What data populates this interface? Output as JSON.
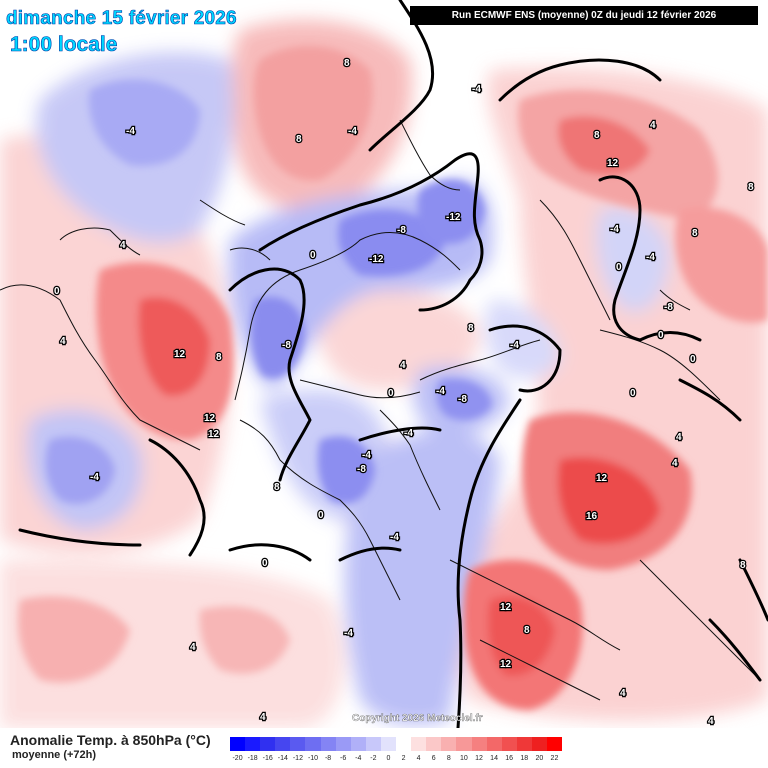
{
  "header": {
    "date": "dimanche 15 février 2026",
    "time": "1:00 locale",
    "run": "Run ECMWF ENS (moyenne) 0Z du jeudi 12 février 2026"
  },
  "footer": {
    "variable": "Anomalie Temp. à 850hPa (°C)",
    "subtitle": "moyenne  (+72h)",
    "copyright": "Copyright 2026 Meteociel.fr"
  },
  "legend": {
    "values": [
      "-20",
      "-18",
      "-16",
      "-14",
      "-12",
      "-10",
      "-8",
      "-6",
      "-4",
      "-2",
      "0",
      "2",
      "4",
      "6",
      "8",
      "10",
      "12",
      "14",
      "16",
      "18",
      "20",
      "22"
    ],
    "colors": [
      "#0000ff",
      "#1a1aff",
      "#3030f0",
      "#4646f0",
      "#5a5af0",
      "#6e6ef2",
      "#8484f4",
      "#9a9af6",
      "#b0b0f8",
      "#c8c8fa",
      "#e2e2fc",
      "#ffffff",
      "#fde0e0",
      "#fbc8c8",
      "#f9b0b0",
      "#f79898",
      "#f58080",
      "#f36868",
      "#f15050",
      "#ef3838",
      "#ee2020",
      "#ff0000"
    ]
  },
  "contour_labels": [
    "-4",
    "8",
    "8",
    "-4",
    "8",
    "-4",
    "8",
    "4",
    "12",
    "8",
    "-4",
    "0",
    "-12",
    "-8",
    "-12",
    "-8",
    "4",
    "4",
    "0",
    "0",
    "8",
    "4",
    "-4",
    "-8",
    "12",
    "8",
    "12",
    "12",
    "0",
    "-4",
    "-4",
    "-8",
    "-4",
    "-4",
    "0",
    "8",
    "0",
    "12",
    "16",
    "4",
    "-8",
    "-4",
    "0",
    "0",
    "-4",
    "12",
    "8",
    "12",
    "4",
    "4",
    "8",
    "4",
    "0",
    "4",
    "-4",
    "4"
  ]
}
